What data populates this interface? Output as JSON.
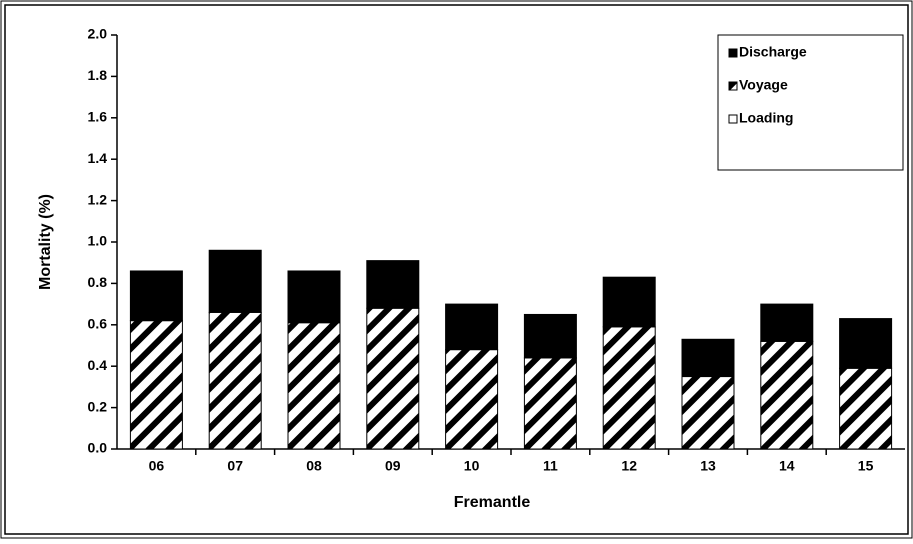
{
  "chart_data": {
    "type": "stacked-bar",
    "x_label": "Fremantle",
    "y_label": "Mortality (%)",
    "categories": [
      "06",
      "07",
      "08",
      "09",
      "10",
      "11",
      "12",
      "13",
      "14",
      "15"
    ],
    "series": [
      {
        "name": "Loading",
        "color": "#ffffff",
        "values": [
          0,
          0,
          0,
          0,
          0,
          0,
          0,
          0,
          0,
          0
        ]
      },
      {
        "name": "Voyage",
        "color": "hatch",
        "values": [
          0.62,
          0.66,
          0.61,
          0.68,
          0.48,
          0.44,
          0.59,
          0.35,
          0.52,
          0.39
        ]
      },
      {
        "name": "Discharge",
        "color": "#000000",
        "values": [
          0.24,
          0.3,
          0.25,
          0.23,
          0.22,
          0.21,
          0.24,
          0.18,
          0.18,
          0.24
        ]
      }
    ],
    "ylim": [
      0,
      2
    ],
    "yticks": [
      {
        "value": 0,
        "label": "0.0"
      },
      {
        "value": 0.2,
        "label": "0.2"
      },
      {
        "value": 0.4,
        "label": "0.4"
      },
      {
        "value": 0.6,
        "label": "0.6"
      },
      {
        "value": 0.8,
        "label": "0.8"
      },
      {
        "value": 1,
        "label": "1.0"
      },
      {
        "value": 1.2,
        "label": "1.2"
      },
      {
        "value": 1.4,
        "label": "1.4"
      },
      {
        "value": 1.6,
        "label": "1.6"
      },
      {
        "value": 1.8,
        "label": "1.8"
      },
      {
        "value": 2,
        "label": "2.0"
      }
    ],
    "grid": false,
    "legend": "top-right"
  }
}
